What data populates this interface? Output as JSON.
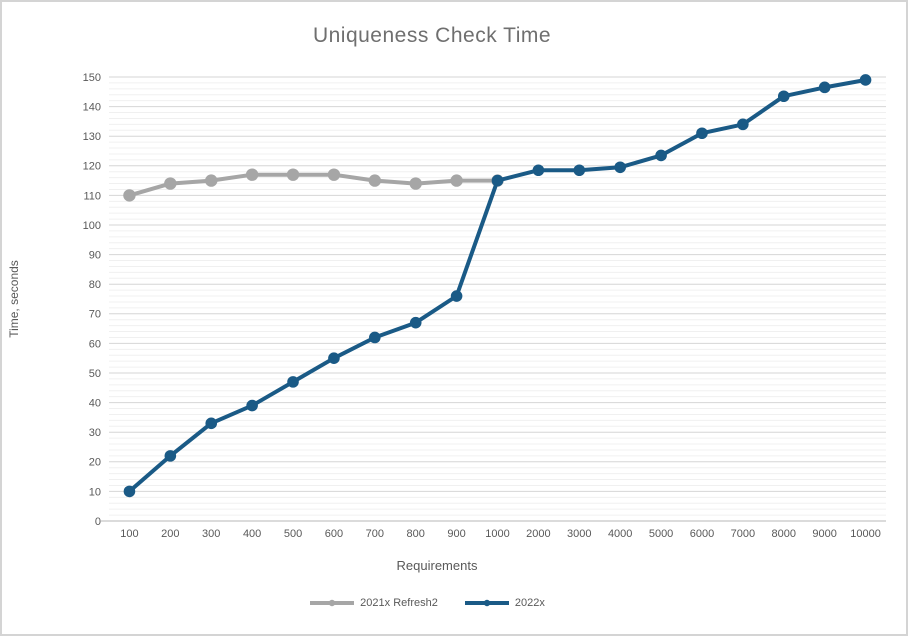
{
  "chart_data": {
    "type": "line",
    "title": "Uniqueness Check Time",
    "xlabel": "Requirements",
    "ylabel": "Time, seconds",
    "ylim": [
      0,
      150
    ],
    "y_major_unit": 10,
    "y_minor_unit": 2,
    "grid": true,
    "legend_position": "bottom",
    "categories": [
      "100",
      "200",
      "300",
      "400",
      "500",
      "600",
      "700",
      "800",
      "900",
      "1000",
      "2000",
      "3000",
      "4000",
      "5000",
      "6000",
      "7000",
      "8000",
      "9000",
      "10000"
    ],
    "series": [
      {
        "name": "2021x Refresh2",
        "color": "#A6A6A6",
        "values": [
          110,
          114,
          115,
          117,
          117,
          117,
          115,
          114,
          115,
          115,
          null,
          null,
          null,
          null,
          null,
          null,
          null,
          null,
          null
        ]
      },
      {
        "name": "2022x",
        "color": "#1A5A86",
        "values": [
          10,
          22,
          33,
          39,
          47,
          55,
          62,
          67,
          76,
          115,
          118.5,
          118.5,
          119.5,
          123.5,
          131,
          134,
          143.5,
          146.5,
          149
        ]
      }
    ]
  },
  "colors": {
    "title_text": "#6F6F6F",
    "axis_text": "#595959",
    "major_grid": "#D6D6D6",
    "minor_grid": "#F0F0F0",
    "axis_line": "#CFCFCF",
    "frame_border": "#D4D4D4",
    "background": "#FFFFFF"
  }
}
